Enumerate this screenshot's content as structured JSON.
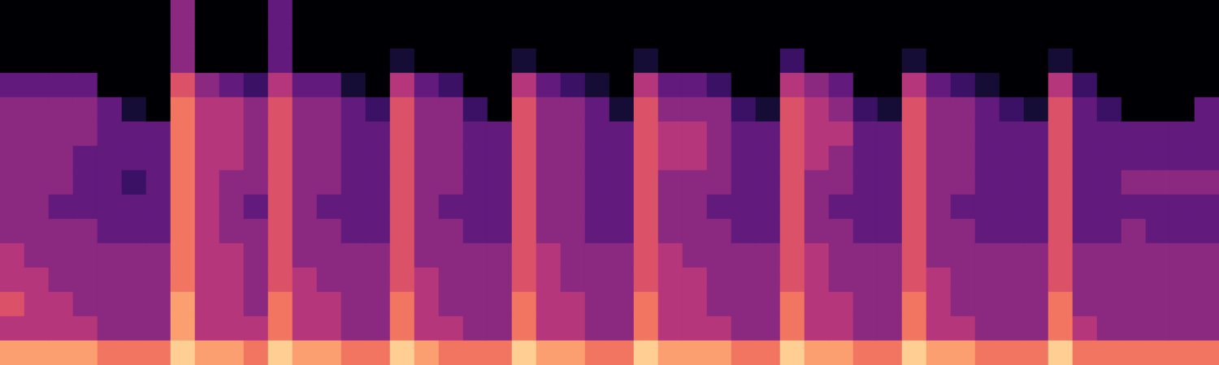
{
  "chart_data": {
    "type": "heatmap",
    "tick_labels": false,
    "grid": false,
    "zlim": [
      0,
      10
    ],
    "cells": [
      [
        0,
        0,
        0,
        3,
        4,
        4,
        4,
        4,
        4,
        4,
        5,
        5,
        6,
        5,
        8
      ],
      [
        0,
        0,
        0,
        3,
        4,
        4,
        4,
        4,
        4,
        4,
        4,
        5,
        5,
        5,
        8
      ],
      [
        0,
        0,
        0,
        3,
        4,
        4,
        4,
        4,
        3,
        4,
        4,
        4,
        5,
        5,
        8
      ],
      [
        0,
        0,
        0,
        3,
        4,
        4,
        3,
        3,
        3,
        4,
        4,
        4,
        4,
        5,
        8
      ],
      [
        0,
        0,
        0,
        0,
        3,
        3,
        3,
        3,
        3,
        3,
        4,
        4,
        4,
        4,
        7
      ],
      [
        0,
        0,
        0,
        0,
        1,
        3,
        3,
        2,
        3,
        3,
        4,
        4,
        4,
        4,
        7
      ],
      [
        0,
        0,
        0,
        0,
        0,
        3,
        3,
        3,
        3,
        3,
        4,
        4,
        4,
        4,
        7
      ],
      [
        4,
        4,
        4,
        6,
        7,
        7,
        7,
        7,
        7,
        7,
        7,
        7,
        8,
        8,
        9
      ],
      [
        0,
        0,
        0,
        4,
        5,
        5,
        5,
        5,
        5,
        5,
        5,
        5,
        5,
        5,
        8
      ],
      [
        0,
        0,
        0,
        3,
        5,
        5,
        5,
        4,
        4,
        4,
        5,
        5,
        5,
        5,
        8
      ],
      [
        0,
        0,
        0,
        2,
        4,
        4,
        4,
        4,
        3,
        4,
        4,
        4,
        4,
        5,
        7
      ],
      [
        3,
        3,
        3,
        5,
        6,
        6,
        6,
        6,
        6,
        6,
        6,
        6,
        7,
        7,
        9
      ],
      [
        0,
        0,
        0,
        3,
        4,
        4,
        4,
        4,
        4,
        4,
        4,
        5,
        5,
        5,
        8
      ],
      [
        0,
        0,
        0,
        3,
        4,
        4,
        4,
        4,
        3,
        4,
        4,
        4,
        5,
        5,
        8
      ],
      [
        0,
        0,
        0,
        1,
        3,
        3,
        3,
        3,
        3,
        3,
        4,
        4,
        4,
        4,
        7
      ],
      [
        0,
        0,
        0,
        0,
        2,
        3,
        3,
        3,
        3,
        3,
        4,
        4,
        4,
        4,
        7
      ],
      [
        0,
        0,
        1,
        5,
        6,
        6,
        6,
        6,
        6,
        6,
        6,
        6,
        7,
        7,
        9
      ],
      [
        0,
        0,
        0,
        3,
        4,
        4,
        4,
        4,
        4,
        4,
        4,
        5,
        5,
        5,
        8
      ],
      [
        0,
        0,
        0,
        2,
        4,
        4,
        4,
        4,
        3,
        4,
        4,
        4,
        4,
        5,
        7
      ],
      [
        0,
        0,
        0,
        0,
        2,
        3,
        3,
        3,
        3,
        3,
        4,
        4,
        4,
        4,
        7
      ],
      [
        0,
        0,
        0,
        0,
        0,
        3,
        3,
        3,
        3,
        3,
        4,
        4,
        4,
        4,
        7
      ],
      [
        0,
        0,
        1,
        5,
        6,
        6,
        6,
        6,
        6,
        6,
        6,
        6,
        7,
        7,
        9
      ],
      [
        0,
        0,
        0,
        3,
        4,
        4,
        4,
        4,
        4,
        4,
        5,
        5,
        5,
        5,
        8
      ],
      [
        0,
        0,
        0,
        2,
        4,
        4,
        4,
        4,
        4,
        4,
        4,
        4,
        5,
        5,
        8
      ],
      [
        0,
        0,
        0,
        1,
        3,
        3,
        3,
        3,
        3,
        3,
        4,
        4,
        4,
        4,
        7
      ],
      [
        0,
        0,
        0,
        0,
        1,
        3,
        3,
        3,
        3,
        3,
        4,
        4,
        4,
        4,
        7
      ],
      [
        0,
        0,
        1,
        5,
        6,
        6,
        6,
        6,
        6,
        6,
        6,
        6,
        7,
        7,
        9
      ],
      [
        0,
        0,
        0,
        3,
        4,
        5,
        5,
        4,
        4,
        4,
        5,
        5,
        5,
        5,
        8
      ],
      [
        0,
        0,
        0,
        3,
        4,
        5,
        5,
        4,
        4,
        4,
        4,
        5,
        5,
        5,
        8
      ],
      [
        0,
        0,
        0,
        2,
        4,
        4,
        4,
        4,
        3,
        4,
        4,
        4,
        4,
        5,
        8
      ],
      [
        0,
        0,
        0,
        0,
        2,
        3,
        3,
        3,
        3,
        3,
        4,
        4,
        4,
        4,
        7
      ],
      [
        0,
        0,
        0,
        0,
        1,
        3,
        3,
        3,
        3,
        3,
        4,
        4,
        4,
        4,
        7
      ],
      [
        0,
        0,
        2,
        5,
        6,
        6,
        6,
        6,
        6,
        6,
        6,
        6,
        7,
        7,
        9
      ],
      [
        0,
        0,
        0,
        4,
        5,
        5,
        5,
        4,
        4,
        4,
        5,
        5,
        5,
        5,
        8
      ],
      [
        0,
        0,
        0,
        3,
        4,
        5,
        4,
        4,
        3,
        4,
        4,
        4,
        5,
        5,
        8
      ],
      [
        0,
        0,
        0,
        0,
        2,
        3,
        3,
        3,
        3,
        3,
        4,
        4,
        4,
        4,
        7
      ],
      [
        0,
        0,
        0,
        0,
        1,
        3,
        3,
        3,
        3,
        3,
        4,
        4,
        4,
        4,
        7
      ],
      [
        0,
        0,
        1,
        5,
        6,
        6,
        6,
        6,
        6,
        6,
        6,
        6,
        7,
        7,
        9
      ],
      [
        0,
        0,
        0,
        3,
        4,
        4,
        4,
        4,
        4,
        4,
        4,
        5,
        5,
        5,
        8
      ],
      [
        0,
        0,
        0,
        2,
        4,
        4,
        4,
        4,
        3,
        4,
        4,
        4,
        4,
        5,
        8
      ],
      [
        0,
        0,
        0,
        1,
        3,
        3,
        3,
        3,
        3,
        3,
        4,
        4,
        4,
        4,
        7
      ],
      [
        0,
        0,
        0,
        0,
        2,
        3,
        3,
        3,
        3,
        3,
        4,
        4,
        4,
        4,
        7
      ],
      [
        0,
        0,
        0,
        0,
        1,
        3,
        3,
        3,
        3,
        3,
        4,
        4,
        4,
        4,
        7
      ],
      [
        0,
        0,
        1,
        5,
        6,
        6,
        6,
        6,
        6,
        6,
        6,
        6,
        7,
        7,
        9
      ],
      [
        0,
        0,
        0,
        2,
        3,
        3,
        3,
        3,
        3,
        3,
        4,
        4,
        4,
        5,
        7
      ],
      [
        0,
        0,
        0,
        0,
        2,
        3,
        3,
        3,
        3,
        3,
        4,
        4,
        4,
        4,
        7
      ],
      [
        0,
        0,
        0,
        0,
        0,
        3,
        3,
        4,
        3,
        4,
        4,
        4,
        4,
        4,
        7
      ],
      [
        0,
        0,
        0,
        0,
        0,
        3,
        3,
        4,
        3,
        3,
        4,
        4,
        4,
        4,
        7
      ],
      [
        0,
        0,
        0,
        0,
        0,
        3,
        3,
        4,
        3,
        3,
        4,
        4,
        4,
        4,
        7
      ],
      [
        0,
        0,
        0,
        0,
        3,
        3,
        3,
        4,
        3,
        3,
        4,
        4,
        4,
        4,
        7
      ]
    ]
  }
}
